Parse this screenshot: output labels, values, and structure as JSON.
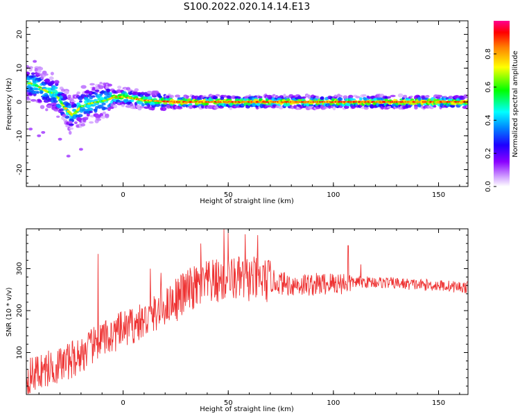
{
  "title": "S100.2022.020.14.14.E13",
  "chart_data": [
    {
      "type": "heatmap",
      "xlabel": "Height of straight line (km)",
      "ylabel": "Frequency (Hz)",
      "xlim": [
        -46,
        164
      ],
      "ylim": [
        -25,
        24
      ],
      "x_ticks": [
        0,
        50,
        100,
        150
      ],
      "y_ticks": [
        -20,
        -10,
        0,
        10,
        20
      ],
      "colorbar": {
        "label": "Normalized spectral amplitude",
        "range": [
          0,
          1
        ],
        "ticks": [
          0.0,
          0.2,
          0.4,
          0.6,
          0.8
        ],
        "tick_labels": [
          "0.0",
          "0.2",
          "0.4",
          "0.6",
          "0.8"
        ]
      },
      "ridge": {
        "x": [
          -44,
          -40,
          -36,
          -32,
          -28,
          -24,
          -20,
          -16,
          -12,
          -8,
          -4,
          0,
          10,
          25,
          50,
          75,
          100,
          125,
          150,
          164
        ],
        "y": [
          5.5,
          4.5,
          3.0,
          2.5,
          -1.5,
          -4.0,
          -1.5,
          -0.5,
          0.0,
          0.5,
          1.5,
          1.5,
          0.5,
          0.0,
          0.0,
          0.0,
          0.0,
          0.0,
          0.0,
          0.0
        ]
      }
    },
    {
      "type": "line",
      "xlabel": "Height of straight line (km)",
      "ylabel": "SNR (10 * v/v)",
      "xlim": [
        -46,
        164
      ],
      "ylim": [
        0,
        395
      ],
      "x_ticks": [
        0,
        50,
        100,
        150
      ],
      "y_ticks": [
        100,
        200,
        300
      ],
      "color": "#ee3333",
      "envelope_x": [
        -46,
        -40,
        -30,
        -20,
        -10,
        0,
        10,
        20,
        30,
        40,
        50,
        60,
        70,
        80,
        90,
        100,
        110,
        120,
        130,
        140,
        150,
        164
      ],
      "envelope_y": [
        40,
        55,
        70,
        95,
        130,
        155,
        175,
        210,
        245,
        265,
        275,
        275,
        270,
        262,
        262,
        265,
        268,
        268,
        265,
        262,
        260,
        255
      ],
      "spikes": [
        {
          "x": -12,
          "y": 335
        },
        {
          "x": 13,
          "y": 300
        },
        {
          "x": 18,
          "y": 290
        },
        {
          "x": 37,
          "y": 360
        },
        {
          "x": 48,
          "y": 395
        },
        {
          "x": 50,
          "y": 385
        },
        {
          "x": 58,
          "y": 382
        },
        {
          "x": 64,
          "y": 380
        },
        {
          "x": 107,
          "y": 355
        },
        {
          "x": 113,
          "y": 310
        }
      ]
    }
  ]
}
